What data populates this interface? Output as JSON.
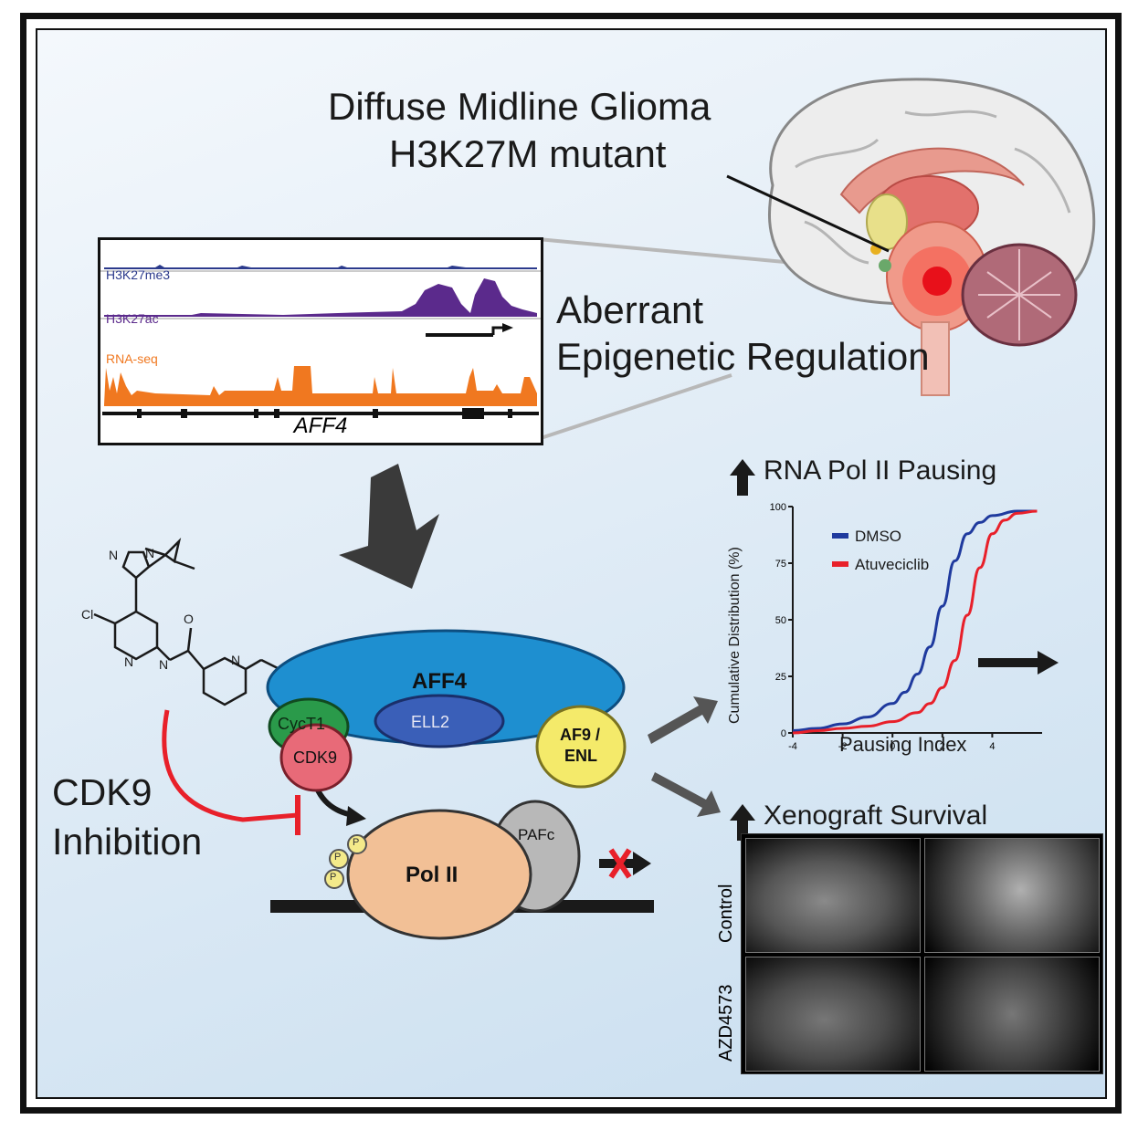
{
  "title": {
    "line1": "Diffuse Midline Glioma",
    "line2": "H3K27M mutant"
  },
  "tracks": {
    "label1": "H3K27me3",
    "label2": "H3K27ac",
    "label3": "RNA-seq",
    "gene": "AFF4",
    "colors": {
      "h3k27me3": "#2b3a8c",
      "h3k27ac": "#5b2a8c",
      "rnaseq": "#f07820"
    }
  },
  "aberrant": {
    "line1": "Aberrant",
    "line2": "Epigenetic Regulation"
  },
  "complex": {
    "aff4": "AFF4",
    "cyct1": "CycT1",
    "ell2": "ELL2",
    "cdk9": "CDK9",
    "af9_line1": "AF9 /",
    "af9_line2": "ENL",
    "polii": "Pol II",
    "pafc": "PAFc",
    "phospho": "P"
  },
  "inhibition": {
    "line1": "CDK9",
    "line2": "Inhibition"
  },
  "chart_section": {
    "title": "RNA Pol II Pausing"
  },
  "chart_data": {
    "type": "line",
    "xlabel": "Pausing Index",
    "ylabel": "Cumulative Distribution (%)",
    "xlim": [
      -4,
      6
    ],
    "ylim": [
      0,
      100
    ],
    "x_ticks": [
      "-4",
      "-2",
      "0",
      "2",
      "4"
    ],
    "y_ticks": [
      "0",
      "25",
      "50",
      "75",
      "100"
    ],
    "legend_position": "top-left",
    "series": [
      {
        "name": "DMSO",
        "color": "#1f3a9e",
        "x": [
          -4,
          -3,
          -2,
          -1,
          0,
          0.5,
          1,
          1.5,
          2,
          2.5,
          3,
          3.5,
          4,
          5,
          5.8
        ],
        "values": [
          1,
          2,
          4,
          7,
          13,
          18,
          26,
          38,
          56,
          76,
          88,
          93,
          96,
          98,
          98
        ]
      },
      {
        "name": "Atuveciclib",
        "color": "#e8202a",
        "x": [
          -4,
          -3,
          -2,
          -1,
          0,
          1,
          1.5,
          2,
          2.5,
          3,
          3.5,
          4,
          4.5,
          5,
          5.8
        ],
        "values": [
          0,
          1,
          2,
          3,
          5,
          9,
          13,
          20,
          32,
          52,
          73,
          88,
          94,
          97,
          98
        ]
      }
    ]
  },
  "xenograft": {
    "title": "Xenograft Survival",
    "row1": "Control",
    "row2": "AZD4573"
  }
}
